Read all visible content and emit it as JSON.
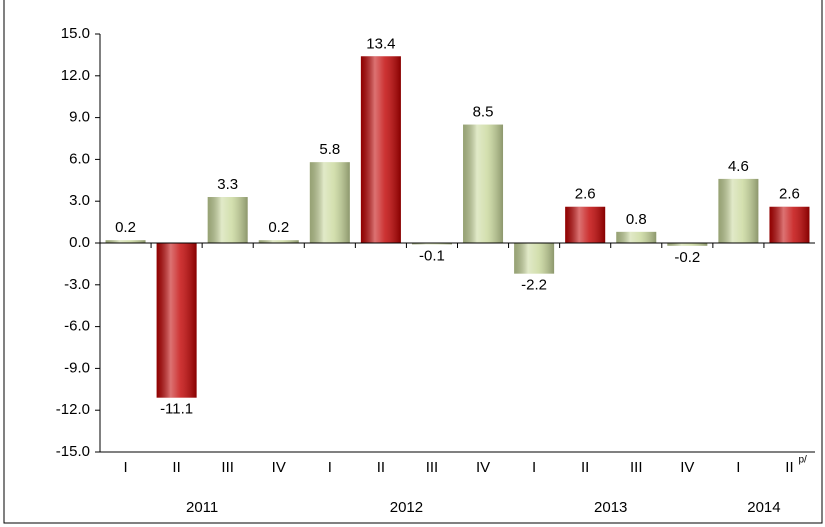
{
  "chart_data": {
    "type": "bar",
    "categories": [
      "I",
      "II",
      "III",
      "IV",
      "I",
      "II",
      "III",
      "IV",
      "I",
      "II",
      "III",
      "IV",
      "I",
      "II"
    ],
    "years": [
      "2011",
      "2012",
      "2013",
      "2014"
    ],
    "annotation": "p/",
    "values": [
      0.2,
      -11.1,
      3.3,
      0.2,
      5.8,
      13.4,
      -0.1,
      8.5,
      -2.2,
      2.6,
      0.8,
      -0.2,
      4.6,
      2.6
    ],
    "colors": [
      "#c9d89b",
      "#c00000",
      "#c9d89b",
      "#c9d89b",
      "#c9d89b",
      "#c00000",
      "#c9d89b",
      "#c9d89b",
      "#c9d89b",
      "#c00000",
      "#c9d89b",
      "#c9d89b",
      "#c9d89b",
      "#c00000"
    ],
    "ylim": [
      -15,
      15
    ],
    "yticks": [
      {
        "value": -15,
        "label": "-15.0"
      },
      {
        "value": -12,
        "label": "-12.0"
      },
      {
        "value": -9,
        "label": "-9.0"
      },
      {
        "value": -6,
        "label": "-6.0"
      },
      {
        "value": -3,
        "label": "-3.0"
      },
      {
        "value": 0,
        "label": "0.0"
      },
      {
        "value": 3,
        "label": "3.0"
      },
      {
        "value": 6,
        "label": "6.0"
      },
      {
        "value": 9,
        "label": "9.0"
      },
      {
        "value": 12,
        "label": "12.0"
      },
      {
        "value": 15,
        "label": "15.0"
      }
    ],
    "grid": false
  }
}
